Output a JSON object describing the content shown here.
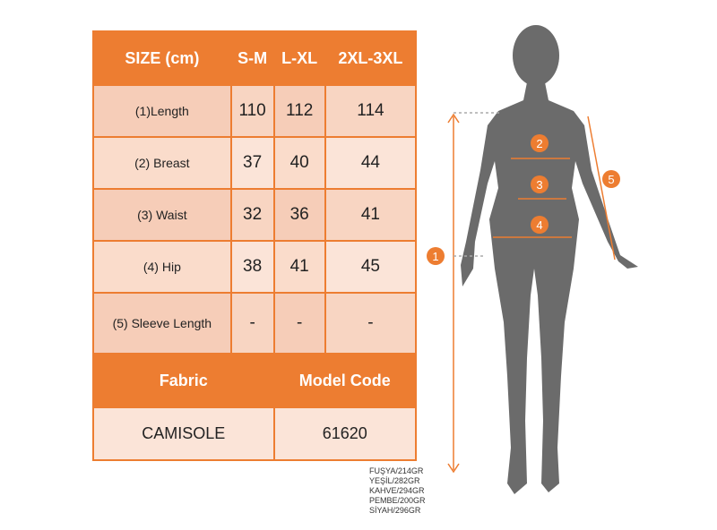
{
  "table": {
    "header": [
      "SIZE (cm)",
      "S-M",
      "L-XL",
      "2XL-3XL"
    ],
    "rows": [
      {
        "label": "(1)Length",
        "values": [
          "110",
          "112",
          "114"
        ]
      },
      {
        "label": "(2) Breast",
        "values": [
          "37",
          "40",
          "44"
        ]
      },
      {
        "label": "(3) Waist",
        "values": [
          "32",
          "36",
          "41"
        ]
      },
      {
        "label": "(4) Hip",
        "values": [
          "38",
          "41",
          "45"
        ]
      },
      {
        "label": "(5) Sleeve Length",
        "values": [
          "-",
          "-",
          "-"
        ]
      }
    ],
    "fabric_label": "Fabric",
    "model_code_label": "Model Code",
    "fabric": "CAMISOLE",
    "model_code": "61620"
  },
  "weights": [
    "FUŞYA/214GR",
    "YEŞİL/282GR",
    "KAHVE/294GR",
    "PEMBE/200GR",
    "SİYAH/296GR"
  ],
  "markers": [
    "1",
    "2",
    "3",
    "4",
    "5"
  ],
  "colors": {
    "accent": "#ED7D31",
    "silhouette": "#6b6b6b"
  }
}
